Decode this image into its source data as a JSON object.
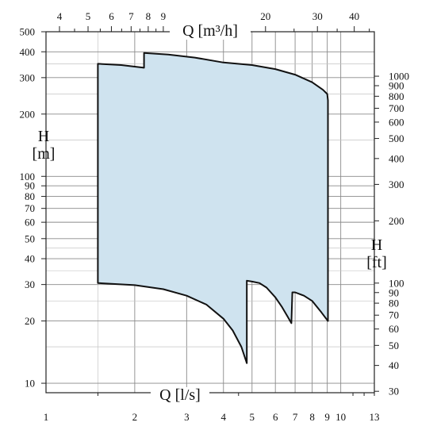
{
  "chart_data": {
    "type": "area",
    "title": "",
    "q_top_label": "Q [m³/h]",
    "q_bottom_label": "Q [l/s]",
    "h_left_label_line1": "H",
    "h_left_label_line2": "[m]",
    "h_right_label_line1": "H",
    "h_right_label_line2": "[ft]",
    "x_scale": "log",
    "x_range_ls": [
      1,
      13
    ],
    "y_scale": "log",
    "y_range_m": [
      9,
      500
    ],
    "grid": true,
    "x_ticks_ls": [
      "1",
      "2",
      "3",
      "4",
      "5",
      "6",
      "7",
      "8",
      "9",
      "10",
      "13"
    ],
    "x_ticks_m3h": [
      "4",
      "5",
      "6",
      "7",
      "8",
      "9",
      "20",
      "30",
      "40"
    ],
    "y_ticks_m": [
      "10",
      "20",
      "30",
      "40",
      "50",
      "60",
      "70",
      "80",
      "90",
      "100",
      "200",
      "300",
      "400",
      "500"
    ],
    "y_ticks_ft": [
      "30",
      "40",
      "50",
      "60",
      "70",
      "80",
      "90",
      "100",
      "200",
      "300",
      "400",
      "500",
      "600",
      "700",
      "800",
      "900",
      "1000"
    ],
    "series": [
      {
        "points_ls_m": [
          [
            1.5,
            350
          ],
          [
            1.8,
            345
          ],
          [
            2.15,
            335
          ],
          [
            2.15,
            395
          ],
          [
            2.6,
            388
          ],
          [
            3.2,
            375
          ],
          [
            4.0,
            355
          ],
          [
            5.0,
            345
          ],
          [
            6.0,
            330
          ],
          [
            7.0,
            310
          ],
          [
            8.0,
            285
          ],
          [
            8.7,
            262
          ],
          [
            9.0,
            250
          ],
          [
            9.05,
            233
          ],
          [
            9.05,
            20
          ],
          [
            8.6,
            22
          ],
          [
            8.0,
            25
          ],
          [
            7.5,
            26.5
          ],
          [
            7.0,
            27.5
          ],
          [
            6.85,
            27.5
          ],
          [
            6.8,
            19.5
          ],
          [
            6.6,
            21
          ],
          [
            6.3,
            23.5
          ],
          [
            6.0,
            26
          ],
          [
            5.6,
            29
          ],
          [
            5.3,
            30.5
          ],
          [
            5.0,
            31
          ],
          [
            4.8,
            31.3
          ],
          [
            4.8,
            12.5
          ],
          [
            4.6,
            15
          ],
          [
            4.3,
            18
          ],
          [
            4.0,
            20.5
          ],
          [
            3.5,
            24
          ],
          [
            3.0,
            26.5
          ],
          [
            2.5,
            28.5
          ],
          [
            2.0,
            29.8
          ],
          [
            1.5,
            30.5
          ]
        ]
      }
    ]
  }
}
